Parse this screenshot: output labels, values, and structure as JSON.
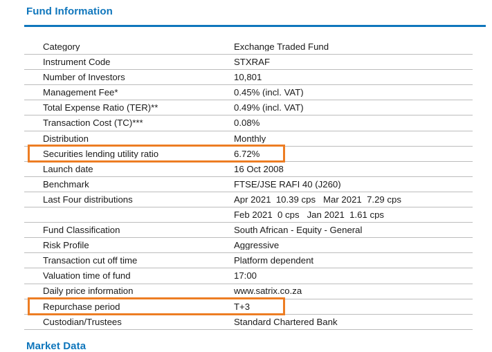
{
  "page": {
    "section_title": "Fund Information",
    "next_section_title": "Market Data"
  },
  "colors": {
    "accent_blue": "#0F76BC",
    "annotation_orange": "#ED7D23",
    "divider_gray": "#BCBCBC",
    "text_color": "#1A1A1A"
  },
  "fund_info_table": {
    "rows": [
      {
        "label": "Category",
        "value": "Exchange Traded Fund",
        "highlighted": false
      },
      {
        "label": "Instrument Code",
        "value": "STXRAF",
        "highlighted": false
      },
      {
        "label": "Number of Investors",
        "value": "10,801",
        "highlighted": false
      },
      {
        "label": "Management Fee*",
        "value": "0.45% (incl. VAT)",
        "highlighted": false
      },
      {
        "label": "Total Expense Ratio (TER)**",
        "value": "0.49% (incl. VAT)",
        "highlighted": false
      },
      {
        "label": "Transaction Cost (TC)***",
        "value": "0.08%",
        "highlighted": false
      },
      {
        "label": "Distribution",
        "value": "Monthly",
        "highlighted": false
      },
      {
        "label": "Securities lending utility ratio",
        "value": "6.72%",
        "highlighted": true
      },
      {
        "label": "Launch date",
        "value": "16 Oct 2008",
        "highlighted": false
      },
      {
        "label": "Benchmark",
        "value": "FTSE/JSE RAFI 40 (J260)",
        "highlighted": false
      },
      {
        "label": "Last Four distributions",
        "value": "Apr 2021  10.39 cps   Mar 2021  7.29 cps",
        "highlighted": false
      },
      {
        "label": "",
        "value": "Feb 2021  0 cps   Jan 2021  1.61 cps",
        "highlighted": false
      },
      {
        "label": "Fund Classification",
        "value": "South African - Equity - General",
        "highlighted": false
      },
      {
        "label": "Risk Profile",
        "value": "Aggressive",
        "highlighted": false
      },
      {
        "label": "Transaction cut off time",
        "value": "Platform dependent",
        "highlighted": false
      },
      {
        "label": "Valuation time of fund",
        "value": "17:00",
        "highlighted": false
      },
      {
        "label": "Daily price information",
        "value": "www.satrix.co.za",
        "highlighted": false
      },
      {
        "label": "Repurchase period",
        "value": "T+3",
        "highlighted": true
      },
      {
        "label": "Custodian/Trustees",
        "value": "Standard Chartered Bank",
        "highlighted": false
      }
    ]
  }
}
